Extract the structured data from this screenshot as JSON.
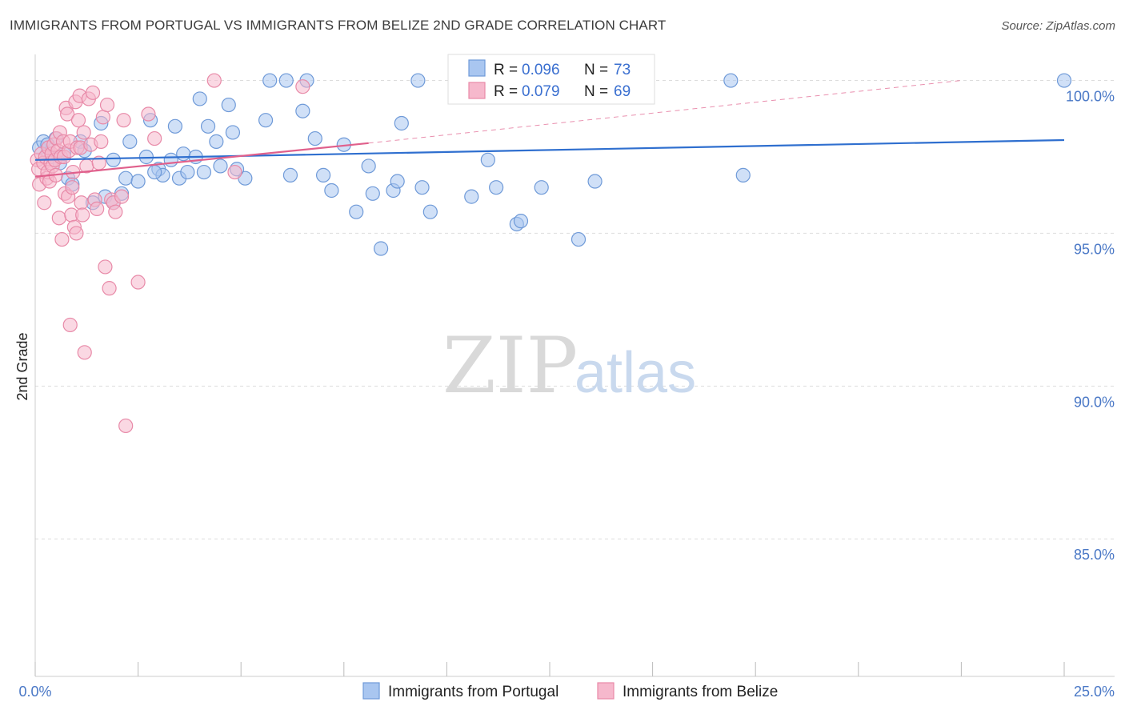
{
  "title": "IMMIGRANTS FROM PORTUGAL VS IMMIGRANTS FROM BELIZE 2ND GRADE CORRELATION CHART",
  "source": "Source: ZipAtlas.com",
  "watermark": {
    "zip": "ZIP",
    "atlas": "atlas"
  },
  "colors": {
    "portugal_fill": "#a9c6f0",
    "portugal_stroke": "#6f9ad8",
    "portugal_line": "#2f6fcf",
    "belize_fill": "#f6b8cc",
    "belize_stroke": "#e88aa8",
    "belize_line": "#e0608c",
    "grid": "#dddddd",
    "axis_text": "#4a78c6"
  },
  "legend": {
    "rows": [
      {
        "r_label": "R = ",
        "r_value": "0.096",
        "n_label": "N = ",
        "n_value": "73"
      },
      {
        "r_label": "R = ",
        "r_value": "0.079",
        "n_label": "N = ",
        "n_value": "69"
      }
    ]
  },
  "chart_data": {
    "type": "scatter",
    "title": "IMMIGRANTS FROM PORTUGAL VS IMMIGRANTS FROM BELIZE 2ND GRADE CORRELATION CHART",
    "xlabel": "",
    "ylabel": "2nd Grade",
    "xlim": [
      0,
      25
    ],
    "ylim": [
      80.5,
      100.8
    ],
    "x_tick_labels": [
      "0.0%",
      "25.0%"
    ],
    "y_ticks": [
      85,
      90,
      95,
      100
    ],
    "y_tick_labels": [
      "85.0%",
      "90.0%",
      "95.0%",
      "100.0%"
    ],
    "grid": true,
    "legend_position": "top-center",
    "series": [
      {
        "name": "Immigrants from Portugal",
        "r": 0.096,
        "n": 73,
        "trend": {
          "x": [
            0,
            25
          ],
          "y": [
            97.4,
            98.05
          ]
        },
        "points": [
          [
            0.1,
            97.8
          ],
          [
            0.2,
            98.0
          ],
          [
            0.3,
            97.6
          ],
          [
            0.4,
            97.5
          ],
          [
            0.5,
            98.1
          ],
          [
            0.6,
            97.3
          ],
          [
            0.7,
            97.6
          ],
          [
            0.8,
            96.8
          ],
          [
            1.1,
            98.0
          ],
          [
            1.2,
            97.7
          ],
          [
            1.4,
            96.0
          ],
          [
            1.6,
            98.6
          ],
          [
            1.7,
            96.2
          ],
          [
            1.9,
            97.4
          ],
          [
            2.1,
            96.3
          ],
          [
            2.2,
            96.8
          ],
          [
            2.3,
            98.0
          ],
          [
            2.5,
            96.7
          ],
          [
            2.7,
            97.5
          ],
          [
            2.8,
            98.7
          ],
          [
            3.0,
            97.1
          ],
          [
            3.1,
            96.9
          ],
          [
            3.3,
            97.4
          ],
          [
            3.4,
            98.5
          ],
          [
            3.5,
            96.8
          ],
          [
            3.6,
            97.6
          ],
          [
            3.7,
            97.0
          ],
          [
            3.9,
            97.5
          ],
          [
            4.0,
            99.4
          ],
          [
            4.1,
            97.0
          ],
          [
            4.2,
            98.5
          ],
          [
            4.4,
            98.0
          ],
          [
            4.5,
            97.2
          ],
          [
            4.7,
            99.2
          ],
          [
            4.8,
            98.3
          ],
          [
            5.1,
            96.8
          ],
          [
            5.6,
            98.7
          ],
          [
            5.7,
            100.0
          ],
          [
            6.1,
            100.0
          ],
          [
            6.2,
            96.9
          ],
          [
            6.5,
            99.0
          ],
          [
            6.6,
            100.0
          ],
          [
            6.8,
            98.1
          ],
          [
            7.0,
            96.9
          ],
          [
            7.2,
            96.4
          ],
          [
            7.5,
            97.9
          ],
          [
            7.8,
            95.7
          ],
          [
            8.1,
            97.2
          ],
          [
            8.2,
            96.3
          ],
          [
            8.4,
            94.5
          ],
          [
            8.7,
            96.4
          ],
          [
            8.8,
            96.7
          ],
          [
            8.9,
            98.6
          ],
          [
            9.3,
            100.0
          ],
          [
            9.4,
            96.5
          ],
          [
            9.6,
            95.7
          ],
          [
            10.6,
            96.2
          ],
          [
            11.0,
            97.4
          ],
          [
            11.2,
            96.5
          ],
          [
            11.7,
            95.3
          ],
          [
            11.8,
            95.4
          ],
          [
            12.3,
            96.5
          ],
          [
            13.2,
            94.8
          ],
          [
            13.6,
            96.7
          ],
          [
            13.8,
            100.0
          ],
          [
            16.9,
            100.0
          ],
          [
            17.2,
            96.9
          ],
          [
            25.0,
            100.0
          ],
          [
            1.9,
            96.0
          ],
          [
            2.9,
            97.0
          ],
          [
            0.3,
            97.9
          ],
          [
            4.9,
            97.1
          ],
          [
            0.9,
            96.6
          ]
        ]
      },
      {
        "name": "Immigrants from Belize",
        "r": 0.079,
        "n": 69,
        "trend": {
          "x": [
            0,
            8.1
          ],
          "y": [
            96.85,
            97.95
          ]
        },
        "trend_extension": {
          "x": [
            8.1,
            22.5
          ],
          "y": [
            97.95,
            100.0
          ]
        },
        "points": [
          [
            0.05,
            97.4
          ],
          [
            0.08,
            97.1
          ],
          [
            0.1,
            96.6
          ],
          [
            0.15,
            97.6
          ],
          [
            0.2,
            97.3
          ],
          [
            0.22,
            96.0
          ],
          [
            0.25,
            97.5
          ],
          [
            0.28,
            96.8
          ],
          [
            0.3,
            97.0
          ],
          [
            0.32,
            97.8
          ],
          [
            0.35,
            96.7
          ],
          [
            0.38,
            97.3
          ],
          [
            0.4,
            97.6
          ],
          [
            0.42,
            97.2
          ],
          [
            0.45,
            97.9
          ],
          [
            0.48,
            97.4
          ],
          [
            0.5,
            96.9
          ],
          [
            0.52,
            98.1
          ],
          [
            0.55,
            97.7
          ],
          [
            0.58,
            95.5
          ],
          [
            0.6,
            98.3
          ],
          [
            0.62,
            97.5
          ],
          [
            0.65,
            94.8
          ],
          [
            0.68,
            98.0
          ],
          [
            0.7,
            97.5
          ],
          [
            0.72,
            96.3
          ],
          [
            0.75,
            99.1
          ],
          [
            0.78,
            98.9
          ],
          [
            0.8,
            96.2
          ],
          [
            0.82,
            97.7
          ],
          [
            0.85,
            98.0
          ],
          [
            0.88,
            95.6
          ],
          [
            0.9,
            96.5
          ],
          [
            0.92,
            97.0
          ],
          [
            0.95,
            95.2
          ],
          [
            0.98,
            99.3
          ],
          [
            1.0,
            95.0
          ],
          [
            1.02,
            97.8
          ],
          [
            1.05,
            98.7
          ],
          [
            1.08,
            99.5
          ],
          [
            1.1,
            97.8
          ],
          [
            1.12,
            96.0
          ],
          [
            1.15,
            95.6
          ],
          [
            1.18,
            98.3
          ],
          [
            1.2,
            91.1
          ],
          [
            1.25,
            97.2
          ],
          [
            1.3,
            99.4
          ],
          [
            1.35,
            97.9
          ],
          [
            1.4,
            99.6
          ],
          [
            1.45,
            96.1
          ],
          [
            1.5,
            95.8
          ],
          [
            1.55,
            97.3
          ],
          [
            1.6,
            98.0
          ],
          [
            1.65,
            98.8
          ],
          [
            1.7,
            93.9
          ],
          [
            1.75,
            99.2
          ],
          [
            1.8,
            93.2
          ],
          [
            1.85,
            96.1
          ],
          [
            1.9,
            96.0
          ],
          [
            1.95,
            95.7
          ],
          [
            2.1,
            96.2
          ],
          [
            2.15,
            98.7
          ],
          [
            2.2,
            88.7
          ],
          [
            2.5,
            93.4
          ],
          [
            2.75,
            98.9
          ],
          [
            2.9,
            98.1
          ],
          [
            4.35,
            100.0
          ],
          [
            4.85,
            97.0
          ],
          [
            6.5,
            99.8
          ]
        ]
      }
    ],
    "extra_points": {
      "belize_low": [
        [
          0.85,
          92.0
        ]
      ]
    }
  },
  "bottom_legend": [
    {
      "label": "Immigrants from Portugal"
    },
    {
      "label": "Immigrants from Belize"
    }
  ]
}
